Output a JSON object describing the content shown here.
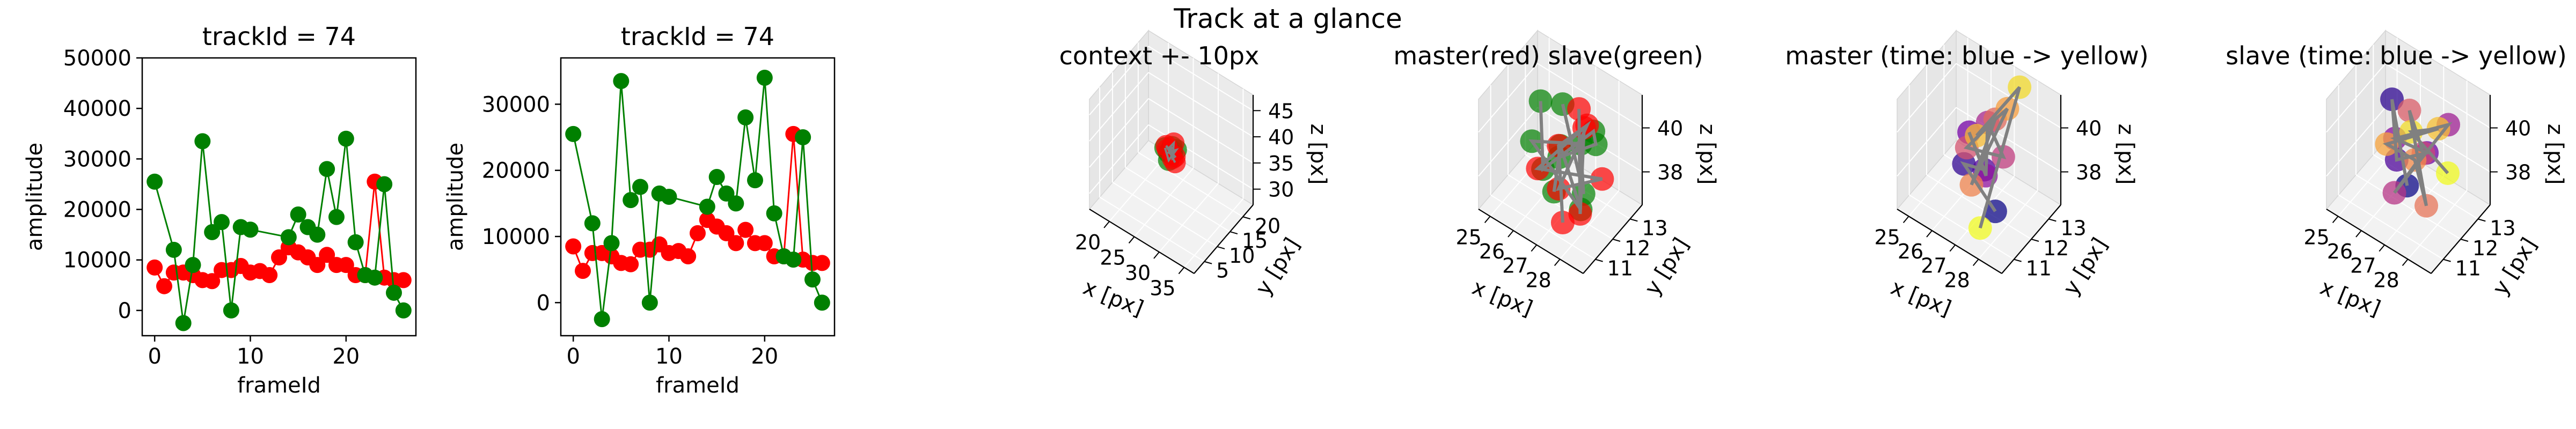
{
  "figure": {
    "suptitle": "Track at a glance"
  },
  "chart_data": [
    {
      "type": "line",
      "title": "trackId = 74",
      "xlabel": "frameId",
      "ylabel": "amplitude",
      "xlim": [
        -1.3,
        27.3
      ],
      "ylim": [
        -5000,
        50000
      ],
      "xticks": [
        0,
        10,
        20
      ],
      "yticks": [
        0,
        10000,
        20000,
        30000,
        40000,
        50000
      ],
      "grid": false,
      "series": [
        {
          "color": "#ff0000",
          "x": [
            0,
            1,
            2,
            3,
            4,
            5,
            6,
            7,
            8,
            9,
            10,
            11,
            12,
            13,
            14,
            15,
            16,
            17,
            18,
            19,
            20,
            21,
            22,
            23,
            24,
            25,
            26
          ],
          "y": [
            8500,
            4800,
            7500,
            7500,
            7000,
            6000,
            5800,
            8000,
            8000,
            8800,
            7500,
            7800,
            7000,
            10500,
            12500,
            11500,
            10500,
            9000,
            11000,
            9000,
            9000,
            7000,
            7000,
            25500,
            6500,
            6000,
            6000
          ]
        },
        {
          "color": "#008000",
          "x": [
            0,
            2,
            3,
            4,
            5,
            6,
            7,
            8,
            9,
            10,
            14,
            15,
            16,
            17,
            18,
            19,
            20,
            21,
            22,
            23,
            24,
            25,
            26
          ],
          "y": [
            25500,
            12000,
            -2500,
            9000,
            33500,
            15500,
            17500,
            0,
            16500,
            16000,
            14500,
            19000,
            16500,
            15000,
            28000,
            18500,
            34000,
            13500,
            7000,
            6500,
            25000,
            3500,
            0
          ]
        }
      ]
    },
    {
      "type": "line",
      "title": "trackId = 74",
      "xlabel": "frameId",
      "ylabel": "amplitude",
      "xlim": [
        -1.3,
        27.3
      ],
      "ylim": [
        -5000,
        37000
      ],
      "xticks": [
        0,
        10,
        20
      ],
      "yticks": [
        0,
        10000,
        20000,
        30000
      ],
      "grid": false,
      "series": [
        {
          "color": "#ff0000",
          "x": [
            0,
            1,
            2,
            3,
            4,
            5,
            6,
            7,
            8,
            9,
            10,
            11,
            12,
            13,
            14,
            15,
            16,
            17,
            18,
            19,
            20,
            21,
            22,
            23,
            24,
            25,
            26
          ],
          "y": [
            8500,
            4800,
            7500,
            7500,
            7000,
            6000,
            5800,
            8000,
            8000,
            8800,
            7500,
            7800,
            7000,
            10500,
            12500,
            11500,
            10500,
            9000,
            11000,
            9000,
            9000,
            7000,
            7000,
            25500,
            6500,
            6000,
            6000
          ]
        },
        {
          "color": "#008000",
          "x": [
            0,
            2,
            3,
            4,
            5,
            6,
            7,
            8,
            9,
            10,
            14,
            15,
            16,
            17,
            18,
            19,
            20,
            21,
            22,
            23,
            24,
            25,
            26
          ],
          "y": [
            25500,
            12000,
            -2500,
            9000,
            33500,
            15500,
            17500,
            0,
            16500,
            16000,
            14500,
            19000,
            16500,
            15000,
            28000,
            18500,
            34000,
            13500,
            7000,
            6500,
            25000,
            3500,
            0
          ]
        }
      ]
    },
    {
      "type": "scatter",
      "projection": "3d",
      "title": "context +- 10px",
      "xlabel": "x [px]",
      "ylabel": "y [px]",
      "zlabel": "z [px]",
      "xlim": [
        16,
        37
      ],
      "ylim": [
        1,
        24
      ],
      "zlim": [
        27,
        48
      ],
      "xticks": [
        20,
        25,
        30,
        35
      ],
      "yticks": [
        5,
        10,
        15,
        20
      ],
      "zticks": [
        30,
        35,
        40,
        45
      ],
      "points": {
        "red": [
          [
            26,
            12,
            38
          ],
          [
            27,
            12.5,
            39.5
          ],
          [
            26.5,
            13,
            36
          ],
          [
            27.5,
            12,
            37.5
          ],
          [
            26,
            11.5,
            39
          ],
          [
            27,
            13,
            35.5
          ]
        ],
        "green": [
          [
            25.5,
            12,
            38
          ],
          [
            26.5,
            11.5,
            36.5
          ],
          [
            27.5,
            12.5,
            38.5
          ],
          [
            26,
            13,
            37
          ],
          [
            27,
            11.8,
            39.2
          ],
          [
            25.8,
            12.8,
            36.8
          ],
          [
            26.8,
            12.2,
            37.4
          ],
          [
            27.2,
            11.6,
            38.6
          ]
        ]
      }
    },
    {
      "type": "scatter",
      "projection": "3d",
      "title": "master(red) slave(green)",
      "xlabel": "x [px]",
      "ylabel": "y [px]",
      "zlabel": "z [px]",
      "xlim": [
        24.5,
        29
      ],
      "ylim": [
        10.3,
        13.7
      ],
      "zlim": [
        36.5,
        41.5
      ],
      "xticks": [
        25,
        26,
        27,
        28
      ],
      "yticks": [
        11,
        12,
        13
      ],
      "zticks": [
        38,
        40
      ],
      "points": {
        "red": [
          [
            27.4,
            12.2,
            41.2
          ],
          [
            27.9,
            11.6,
            37.3
          ],
          [
            27.1,
            12.9,
            39.5
          ],
          [
            26.3,
            11.3,
            38.6
          ],
          [
            28.1,
            12.6,
            38.1
          ],
          [
            26.9,
            11.7,
            37.7
          ],
          [
            27.6,
            12.4,
            40.4
          ],
          [
            26.6,
            12.1,
            39.1
          ],
          [
            27.3,
            11.4,
            36.7
          ]
        ],
        "green": [
          [
            25.6,
            12.4,
            40.2
          ],
          [
            26.3,
            11.6,
            38.3
          ],
          [
            27.5,
            12.9,
            39.6
          ],
          [
            28.2,
            12.1,
            40.2
          ],
          [
            26.1,
            12.8,
            37.6
          ],
          [
            27.0,
            11.3,
            38.0
          ],
          [
            26.6,
            12.2,
            39.0
          ],
          [
            27.7,
            11.9,
            37.1
          ],
          [
            25.9,
            11.5,
            39.4
          ],
          [
            26.8,
            13.1,
            38.4
          ],
          [
            27.3,
            12.6,
            36.9
          ],
          [
            26.4,
            12.6,
            40.4
          ]
        ]
      },
      "line_color": "#808080"
    },
    {
      "type": "scatter",
      "projection": "3d",
      "title": "master (time: blue -> yellow)",
      "xlabel": "x [px]",
      "ylabel": "y [px]",
      "zlabel": "z [px]",
      "xlim": [
        24.5,
        29
      ],
      "ylim": [
        10.3,
        13.7
      ],
      "zlim": [
        36.5,
        41.5
      ],
      "xticks": [
        25,
        26,
        27,
        28
      ],
      "yticks": [
        11,
        12,
        13
      ],
      "zticks": [
        38,
        40
      ],
      "colormap": [
        "#0d0887",
        "#7e03a8",
        "#cc4778",
        "#f89540",
        "#f0f921"
      ],
      "points": [
        [
          27.9,
          11.4,
          37.6
        ],
        [
          26.4,
          11.6,
          38.6
        ],
        [
          26.9,
          12.1,
          38.2
        ],
        [
          26.1,
          12.3,
          39.2
        ],
        [
          27.2,
          11.8,
          38.4
        ],
        [
          26.6,
          12.7,
          39.6
        ],
        [
          27.5,
          12.4,
          38.9
        ],
        [
          26.3,
          11.9,
          39.0
        ],
        [
          27.0,
          12.6,
          40.1
        ],
        [
          26.8,
          11.5,
          38.0
        ],
        [
          27.3,
          12.9,
          40.5
        ],
        [
          26.5,
          12.2,
          39.4
        ],
        [
          27.6,
          13.2,
          41.4
        ],
        [
          27.4,
          11.2,
          36.7
        ]
      ]
    },
    {
      "type": "scatter",
      "projection": "3d",
      "title": "slave (time: blue -> yellow)",
      "xlabel": "x [px]",
      "ylabel": "y [px]",
      "zlabel": "z [px]",
      "xlim": [
        24.5,
        29
      ],
      "ylim": [
        10.3,
        13.7
      ],
      "zlim": [
        36.5,
        41.5
      ],
      "xticks": [
        25,
        26,
        27,
        28
      ],
      "yticks": [
        11,
        12,
        13
      ],
      "zticks": [
        38,
        40
      ],
      "colormap": [
        "#0d0887",
        "#7e03a8",
        "#cc4778",
        "#f89540",
        "#f0f921"
      ],
      "points": [
        [
          27.0,
          11.6,
          38.0
        ],
        [
          25.6,
          12.6,
          40.1
        ],
        [
          26.4,
          11.8,
          38.6
        ],
        [
          27.4,
          12.2,
          39.2
        ],
        [
          26.1,
          12.1,
          39.1
        ],
        [
          27.8,
          12.9,
          40.1
        ],
        [
          26.6,
          11.4,
          37.6
        ],
        [
          27.1,
          12.4,
          38.8
        ],
        [
          26.2,
          12.8,
          39.8
        ],
        [
          27.6,
          11.9,
          37.2
        ],
        [
          26.8,
          12.3,
          38.4
        ],
        [
          25.9,
          11.9,
          38.9
        ],
        [
          27.3,
          13.0,
          39.5
        ],
        [
          26.5,
          12.5,
          39.3
        ],
        [
          28.0,
          12.6,
          38.3
        ]
      ]
    }
  ]
}
